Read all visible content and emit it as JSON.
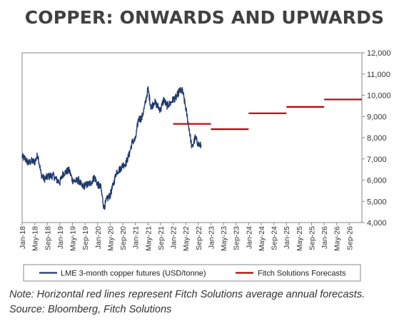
{
  "title": "COPPER: ONWARDS AND UPWARDS",
  "note": "Note: Horizontal red lines represent Fitch Solutions average annual forecasts.",
  "source": "Source: Bloomberg, Fitch Solutions",
  "colors": {
    "actual": "#1f3a6e",
    "forecast": "#c00000",
    "axis": "#888888"
  },
  "chart_data": {
    "type": "line",
    "title": "COPPER: ONWARDS AND UPWARDS",
    "xlabel": "",
    "ylabel": "",
    "ylim": [
      4000,
      12000
    ],
    "yticks": [
      4000,
      5000,
      6000,
      7000,
      8000,
      9000,
      10000,
      11000,
      12000
    ],
    "ytick_labels": [
      "4,000",
      "5,000",
      "6,000",
      "7,000",
      "8,000",
      "9,000",
      "10,000",
      "11,000",
      "12,000"
    ],
    "xlim": [
      "2018-01",
      "2026-12"
    ],
    "xtick_labels": [
      "Jan-18",
      "May-18",
      "Sep-18",
      "Jan-19",
      "May-19",
      "Sep-19",
      "Jan-20",
      "May-20",
      "Sep-20",
      "Jan-21",
      "May-21",
      "Sep-21",
      "Jan-22",
      "May-22",
      "Sep-22",
      "Jan-23",
      "May-23",
      "Sep-23",
      "Jan-24",
      "May-24",
      "Sep-24",
      "Jan-25",
      "May-25",
      "Sep-25",
      "Jan-26",
      "May-26",
      "Sep-26"
    ],
    "legend_position": "bottom",
    "grid": false,
    "series": [
      {
        "name": "LME 3-month copper futures (USD/tonne)",
        "kind": "line",
        "points": [
          [
            "2018-01",
            7100
          ],
          [
            "2018-02",
            7000
          ],
          [
            "2018-03",
            6800
          ],
          [
            "2018-04",
            6900
          ],
          [
            "2018-05",
            6850
          ],
          [
            "2018-06",
            7200
          ],
          [
            "2018-07",
            6300
          ],
          [
            "2018-08",
            6050
          ],
          [
            "2018-09",
            6150
          ],
          [
            "2018-10",
            6200
          ],
          [
            "2018-11",
            6200
          ],
          [
            "2018-12",
            6000
          ],
          [
            "2019-01",
            5900
          ],
          [
            "2019-02",
            6300
          ],
          [
            "2019-03",
            6400
          ],
          [
            "2019-04",
            6450
          ],
          [
            "2019-05",
            6000
          ],
          [
            "2019-06",
            5950
          ],
          [
            "2019-07",
            6000
          ],
          [
            "2019-08",
            5700
          ],
          [
            "2019-09",
            5750
          ],
          [
            "2019-10",
            5800
          ],
          [
            "2019-11",
            5900
          ],
          [
            "2019-12",
            6150
          ],
          [
            "2020-01",
            5800
          ],
          [
            "2020-02",
            5650
          ],
          [
            "2020-03",
            4700
          ],
          [
            "2020-04",
            5100
          ],
          [
            "2020-05",
            5300
          ],
          [
            "2020-06",
            5800
          ],
          [
            "2020-07",
            6400
          ],
          [
            "2020-08",
            6500
          ],
          [
            "2020-09",
            6700
          ],
          [
            "2020-10",
            6800
          ],
          [
            "2020-11",
            7200
          ],
          [
            "2020-12",
            7800
          ],
          [
            "2021-01",
            7900
          ],
          [
            "2021-02",
            8900
          ],
          [
            "2021-03",
            8900
          ],
          [
            "2021-04",
            9500
          ],
          [
            "2021-05",
            10300
          ],
          [
            "2021-06",
            9400
          ],
          [
            "2021-07",
            9700
          ],
          [
            "2021-08",
            9500
          ],
          [
            "2021-09",
            9300
          ],
          [
            "2021-10",
            9800
          ],
          [
            "2021-11",
            9500
          ],
          [
            "2021-12",
            9600
          ],
          [
            "2022-01",
            9800
          ],
          [
            "2022-02",
            9900
          ],
          [
            "2022-03",
            10200
          ],
          [
            "2022-04",
            10200
          ],
          [
            "2022-05",
            9400
          ],
          [
            "2022-06",
            8500
          ],
          [
            "2022-07",
            7500
          ],
          [
            "2022-08",
            8000
          ],
          [
            "2022-09",
            7700
          ],
          [
            "2022-10",
            7600
          ]
        ]
      },
      {
        "name": "Fitch Solutions Forecasts",
        "kind": "horizontal_segments",
        "segments": [
          {
            "year": 2022,
            "value": 8650
          },
          {
            "year": 2023,
            "value": 8400
          },
          {
            "year": 2024,
            "value": 9150
          },
          {
            "year": 2025,
            "value": 9450
          },
          {
            "year": 2026,
            "value": 9800
          }
        ]
      }
    ]
  }
}
